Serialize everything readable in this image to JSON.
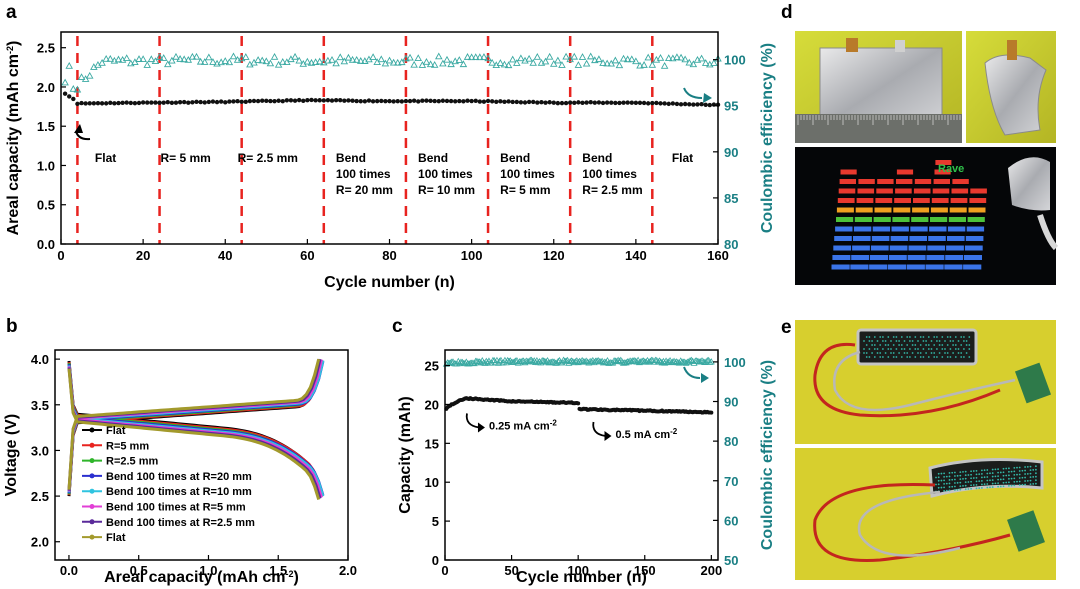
{
  "panels": {
    "a": "a",
    "b": "b",
    "c": "c",
    "d": "d",
    "e": "e"
  },
  "chart_data": [
    {
      "id": "a",
      "type": "scatter",
      "xlabel": "Cycle number (n)",
      "ylabel": "Areal capacity (mAh cm",
      "ylabel_sup": "-2",
      "ylabel_close": ")",
      "y2label": "Coulombic efficiency (%)",
      "xlim": [
        0,
        160
      ],
      "ylim": [
        0,
        2.7
      ],
      "y2lim": [
        80,
        103
      ],
      "xticks": [
        0,
        20,
        40,
        60,
        80,
        100,
        120,
        140,
        160
      ],
      "yticks": [
        0.0,
        0.5,
        1.0,
        1.5,
        2.0,
        2.5
      ],
      "y2ticks": [
        80,
        85,
        90,
        95,
        100
      ],
      "dividers": [
        4,
        24,
        44,
        64,
        84,
        104,
        124,
        144
      ],
      "segments": [
        {
          "lines": [
            "Flat"
          ],
          "x": 5.5
        },
        {
          "lines": [
            "R= 5 mm"
          ],
          "x": 25
        },
        {
          "lines": [
            "R= 2.5 mm"
          ],
          "x": 45
        },
        {
          "lines": [
            "Bend",
            "100 times",
            "R= 20 mm"
          ],
          "x": 65
        },
        {
          "lines": [
            "Bend",
            "100 times",
            "R= 10 mm"
          ],
          "x": 85
        },
        {
          "lines": [
            "Bend",
            "100 times",
            "R= 5 mm"
          ],
          "x": 105
        },
        {
          "lines": [
            "Bend",
            "100 times",
            "R= 2.5 mm"
          ],
          "x": 125
        },
        {
          "lines": [
            "Flat"
          ],
          "x": 146
        }
      ],
      "series": [
        {
          "axis": "left",
          "color": "#111111",
          "marker": "circle",
          "points": [
            [
              1,
              1.92
            ],
            [
              2,
              1.88
            ],
            [
              3,
              1.85
            ],
            [
              4,
              1.79
            ],
            [
              20,
              1.8
            ],
            [
              40,
              1.81
            ],
            [
              60,
              1.83
            ],
            [
              80,
              1.82
            ],
            [
              100,
              1.82
            ],
            [
              120,
              1.8
            ],
            [
              140,
              1.8
            ],
            [
              160,
              1.77
            ]
          ]
        },
        {
          "axis": "right",
          "color": "#3aa9a2",
          "marker": "triangle-open",
          "points": [
            [
              1,
              97.5
            ],
            [
              2,
              99.3
            ],
            [
              3,
              96.8
            ],
            [
              10,
              99.8
            ],
            [
              40,
              99.9
            ],
            [
              80,
              99.8
            ],
            [
              120,
              99.9
            ],
            [
              160,
              99.7
            ]
          ]
        }
      ]
    },
    {
      "id": "b",
      "type": "line",
      "xlabel": "Areal capacity (mAh cm",
      "xlabel_sup": "-2",
      "xlabel_close": ")",
      "ylabel": "Voltage (V)",
      "xlim": [
        -0.1,
        2.0
      ],
      "ylim": [
        1.8,
        4.1
      ],
      "xticks": [
        0.0,
        0.5,
        1.0,
        1.5,
        2.0
      ],
      "yticks": [
        2.0,
        2.5,
        3.0,
        3.5,
        4.0
      ],
      "series": [
        {
          "name": "Flat",
          "color": "#000000",
          "cap": 1.8
        },
        {
          "name": "R=5 mm",
          "color": "#e8231f",
          "cap": 1.81
        },
        {
          "name": "R=2.5 mm",
          "color": "#2fb52a",
          "cap": 1.8
        },
        {
          "name": "Bend 100 times at R=20 mm",
          "color": "#2b2fcf",
          "cap": 1.82
        },
        {
          "name": "Bend 100 times at R=10 mm",
          "color": "#2fc4e0",
          "cap": 1.82
        },
        {
          "name": "Bend 100 times at R=5 mm",
          "color": "#e23fd6",
          "cap": 1.81
        },
        {
          "name": "Bend 100 times at R=2.5 mm",
          "color": "#5a2a9a",
          "cap": 1.8
        },
        {
          "name": "Flat",
          "color": "#a39a2c",
          "cap": 1.79
        }
      ]
    },
    {
      "id": "c",
      "type": "scatter",
      "xlabel": "Cycle number (n)",
      "ylabel": "Capacity (mAh)",
      "y2label": "Coulombic efficiency (%)",
      "xlim": [
        0,
        205
      ],
      "ylim": [
        0,
        27
      ],
      "y2lim": [
        50,
        103
      ],
      "xticks": [
        0,
        50,
        100,
        150,
        200
      ],
      "yticks": [
        0,
        5,
        10,
        15,
        20,
        25
      ],
      "y2ticks": [
        50,
        60,
        70,
        80,
        90,
        100
      ],
      "annotations": [
        {
          "text": "0.25 mA cm",
          "sup": "-2",
          "x": 15,
          "y": 17.3
        },
        {
          "text": "0.5 mA cm",
          "sup": "-2",
          "x": 110,
          "y": 16.2
        }
      ],
      "series": [
        {
          "axis": "left",
          "color": "#111111",
          "marker": "circle",
          "points": [
            [
              1,
              19.5
            ],
            [
              5,
              20.0
            ],
            [
              15,
              20.8
            ],
            [
              50,
              20.4
            ],
            [
              100,
              20.2
            ],
            [
              101,
              19.4
            ],
            [
              150,
              19.2
            ],
            [
              200,
              19.0
            ]
          ]
        },
        {
          "axis": "right",
          "color": "#3aa9a2",
          "marker": "triangle-open",
          "points": [
            [
              1,
              99.8
            ],
            [
              50,
              100.0
            ],
            [
              100,
              100.0
            ],
            [
              150,
              100.0
            ],
            [
              200,
              100.0
            ]
          ]
        }
      ]
    }
  ],
  "photos": {
    "d": {
      "label": "Rave"
    }
  }
}
